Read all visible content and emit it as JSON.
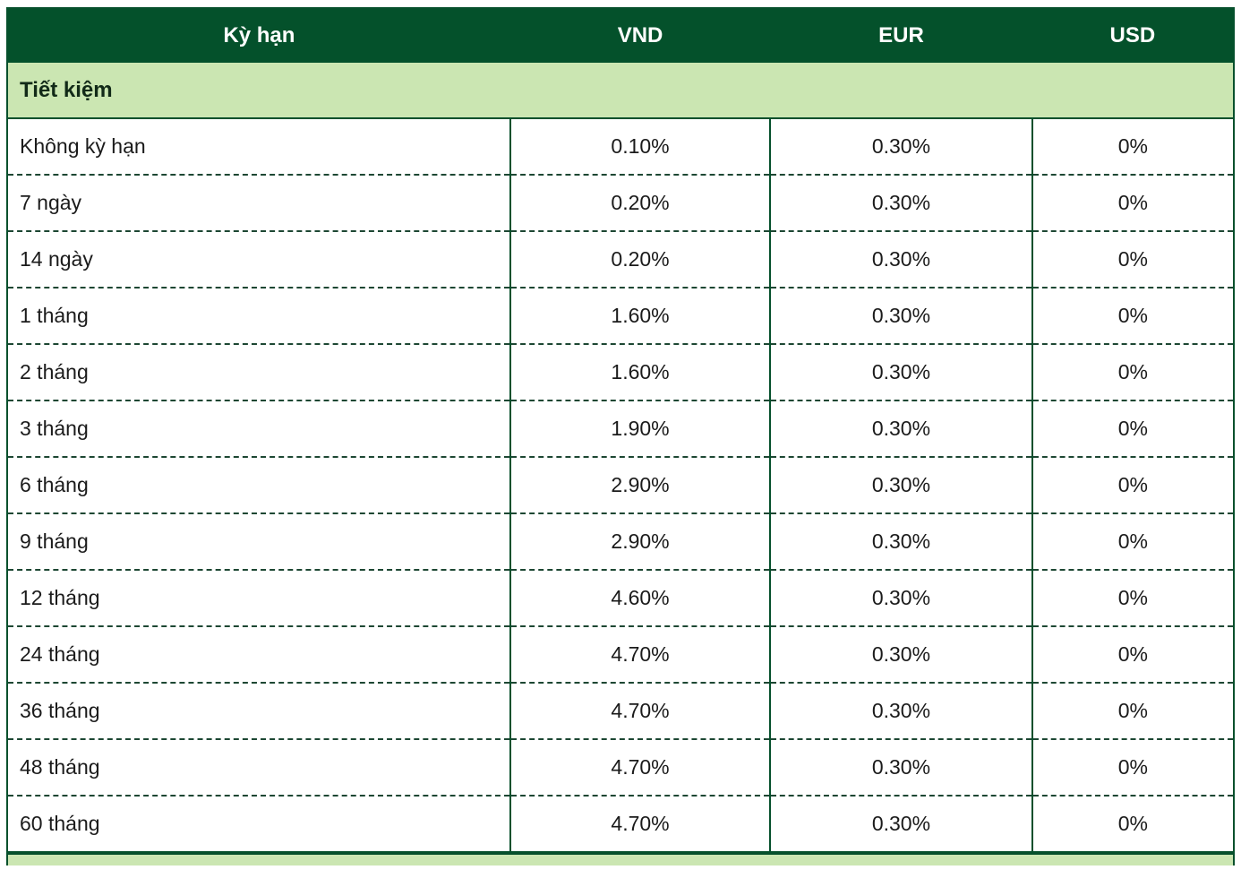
{
  "table": {
    "columns": [
      "Kỳ hạn",
      "VND",
      "EUR",
      "USD"
    ],
    "section_label": "Tiết kiệm",
    "rows": [
      {
        "term": "Không kỳ hạn",
        "vnd": "0.10%",
        "eur": "0.30%",
        "usd": "0%"
      },
      {
        "term": "7 ngày",
        "vnd": "0.20%",
        "eur": "0.30%",
        "usd": "0%"
      },
      {
        "term": "14 ngày",
        "vnd": "0.20%",
        "eur": "0.30%",
        "usd": "0%"
      },
      {
        "term": "1 tháng",
        "vnd": "1.60%",
        "eur": "0.30%",
        "usd": "0%"
      },
      {
        "term": "2 tháng",
        "vnd": "1.60%",
        "eur": "0.30%",
        "usd": "0%"
      },
      {
        "term": "3 tháng",
        "vnd": "1.90%",
        "eur": "0.30%",
        "usd": "0%"
      },
      {
        "term": "6 tháng",
        "vnd": "2.90%",
        "eur": "0.30%",
        "usd": "0%"
      },
      {
        "term": "9 tháng",
        "vnd": "2.90%",
        "eur": "0.30%",
        "usd": "0%"
      },
      {
        "term": "12 tháng",
        "vnd": "4.60%",
        "eur": "0.30%",
        "usd": "0%"
      },
      {
        "term": "24 tháng",
        "vnd": "4.70%",
        "eur": "0.30%",
        "usd": "0%"
      },
      {
        "term": "36 tháng",
        "vnd": "4.70%",
        "eur": "0.30%",
        "usd": "0%"
      },
      {
        "term": "48 tháng",
        "vnd": "4.70%",
        "eur": "0.30%",
        "usd": "0%"
      },
      {
        "term": "60 tháng",
        "vnd": "4.70%",
        "eur": "0.30%",
        "usd": "0%"
      }
    ],
    "colors": {
      "header_bg": "#04512b",
      "header_text": "#ffffff",
      "section_bg": "#cbe6b2",
      "section_text": "#122a18",
      "solid_border": "#06502c",
      "dashed_border": "#1d4733",
      "cell_text": "#1b1b1b"
    }
  }
}
